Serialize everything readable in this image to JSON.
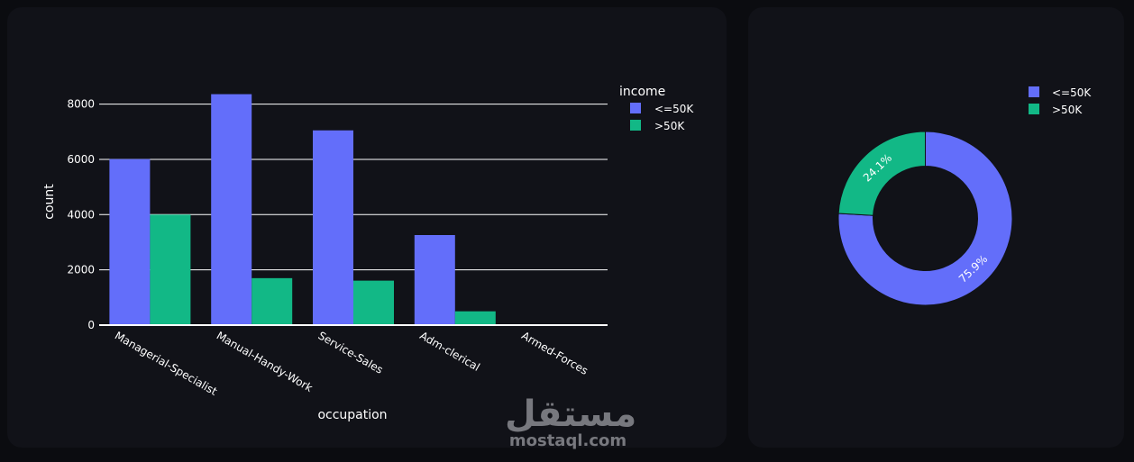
{
  "colors": {
    "le50k": "#636efa",
    "gt50k": "#12b886",
    "grid": "#ffffff",
    "text": "#ffffff"
  },
  "chart_data": [
    {
      "type": "bar",
      "barmode": "group",
      "categories": [
        "Managerial-Specialist",
        "Manual-Handy-Work",
        "Service-Sales",
        "Adm-clerical",
        "Armed-Forces"
      ],
      "series": [
        {
          "name": "<=50K",
          "values": [
            6010,
            8360,
            7050,
            3260,
            10
          ]
        },
        {
          "name": ">50K",
          "values": [
            4000,
            1700,
            1610,
            500,
            5
          ]
        }
      ],
      "xlabel": "occupation",
      "ylabel": "count",
      "ylim": [
        0,
        8900
      ],
      "yticks": [
        0,
        2000,
        4000,
        6000,
        8000
      ],
      "legend_title": "income",
      "legend_position": "top-right",
      "grid": true
    },
    {
      "type": "pie",
      "hole": true,
      "labels": [
        "<=50K",
        ">50K"
      ],
      "values": [
        75.9,
        24.1
      ],
      "text_labels": [
        "75.9%",
        "24.1%"
      ],
      "legend_position": "top-right"
    }
  ]
}
